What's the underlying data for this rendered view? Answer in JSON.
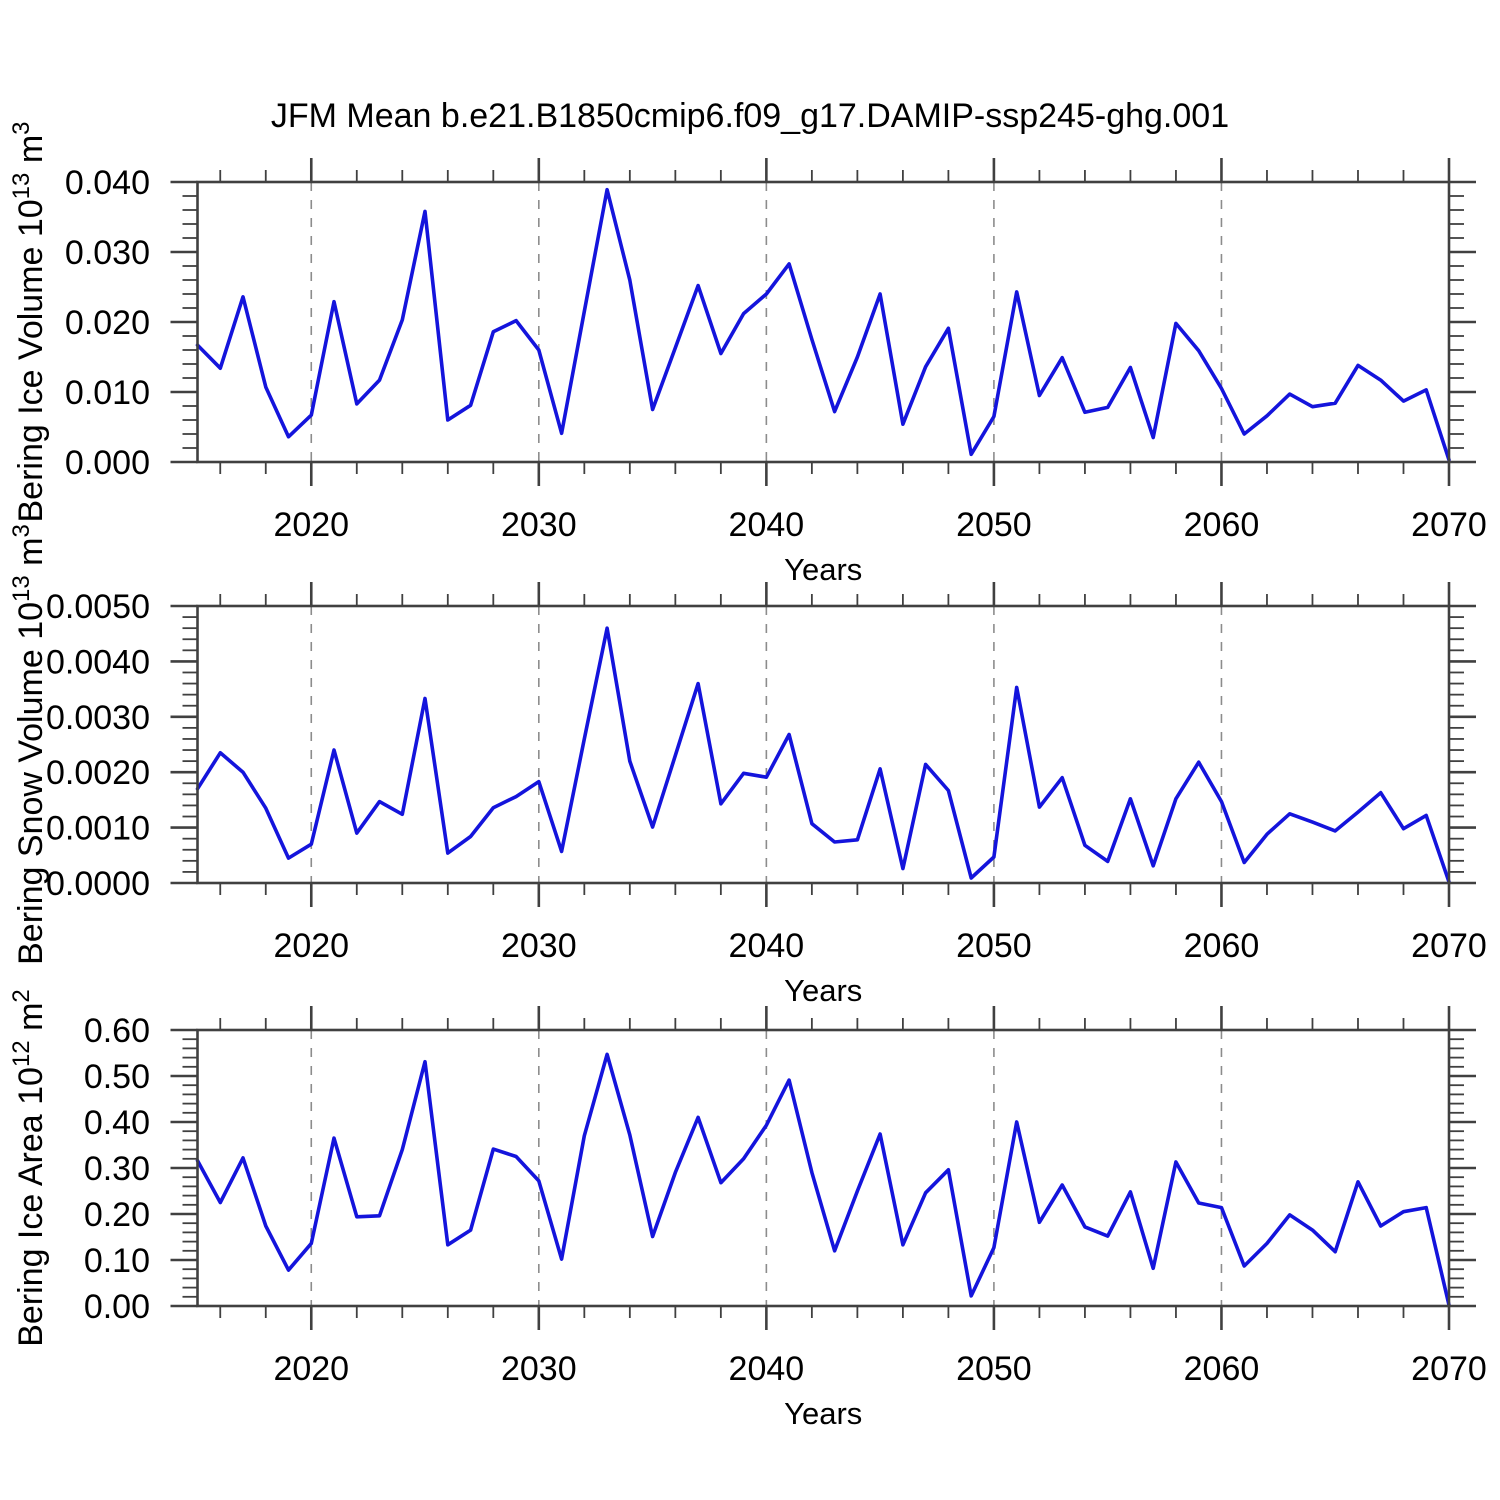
{
  "title": "JFM Mean b.e21.B1850cmip6.f09_g17.DAMIP-ssp245-ghg.001",
  "colors": {
    "line": "#1414dc",
    "axis": "#404040",
    "grid": "#8c8c8c",
    "text": "#000000",
    "background": "#ffffff"
  },
  "chart_data": [
    {
      "type": "line",
      "name": "Bering Ice Volume",
      "slug": "ice-volume",
      "ylabel": "Bering Ice Volume 10¹³ m³",
      "ylabel_parts": {
        "base": "Bering Ice Volume 10",
        "sup1": "13",
        "mid": " m",
        "sup2": "3"
      },
      "xlabel": "Years",
      "ylim": [
        0,
        0.04
      ],
      "yticks": [
        0,
        0.01,
        0.02,
        0.03,
        0.04
      ],
      "ytick_labels": [
        "0.000",
        "0.010",
        "0.020",
        "0.030",
        "0.040"
      ],
      "yminor_step": 0.002,
      "xlim": [
        2015,
        2070
      ],
      "xticks": [
        2020,
        2030,
        2040,
        2050,
        2060,
        2070
      ],
      "xtick_labels": [
        "2020",
        "2030",
        "2040",
        "2050",
        "2060",
        "2070"
      ],
      "xminor_step": 2,
      "grid_years": [
        2020,
        2030,
        2040,
        2050,
        2060
      ],
      "grid_on": true,
      "legend": "none",
      "x": [
        2015,
        2016,
        2017,
        2018,
        2019,
        2020,
        2021,
        2022,
        2023,
        2024,
        2025,
        2026,
        2027,
        2028,
        2029,
        2030,
        2031,
        2032,
        2033,
        2034,
        2035,
        2036,
        2037,
        2038,
        2039,
        2040,
        2041,
        2042,
        2043,
        2044,
        2045,
        2046,
        2047,
        2048,
        2049,
        2050,
        2051,
        2052,
        2053,
        2054,
        2055,
        2056,
        2057,
        2058,
        2059,
        2060,
        2061,
        2062,
        2063,
        2064,
        2065,
        2066,
        2067,
        2068,
        2069,
        2070
      ],
      "values": [
        0.0167,
        0.0134,
        0.0236,
        0.0107,
        0.0036,
        0.0067,
        0.0229,
        0.0083,
        0.0117,
        0.0203,
        0.0358,
        0.006,
        0.0081,
        0.0186,
        0.0202,
        0.016,
        0.0041,
        0.0215,
        0.0389,
        0.026,
        0.0075,
        0.0163,
        0.0252,
        0.0155,
        0.0212,
        0.024,
        0.0283,
        0.0175,
        0.0072,
        0.015,
        0.024,
        0.0054,
        0.0136,
        0.0191,
        0.0011,
        0.0065,
        0.0243,
        0.0095,
        0.0149,
        0.0071,
        0.0078,
        0.0135,
        0.0035,
        0.0198,
        0.0159,
        0.0105,
        0.004,
        0.0066,
        0.0097,
        0.0079,
        0.0084,
        0.0138,
        0.0117,
        0.0087,
        0.0103,
        0.0003
      ]
    },
    {
      "type": "line",
      "name": "Bering Snow Volume",
      "slug": "snow-volume",
      "ylabel": "Bering Snow Volume 10¹³ m³",
      "ylabel_parts": {
        "base": "Bering Snow Volume 10",
        "sup1": "13",
        "mid": " m",
        "sup2": "3"
      },
      "xlabel": "Years",
      "ylim": [
        0,
        0.005
      ],
      "yticks": [
        0,
        0.001,
        0.002,
        0.003,
        0.004,
        0.005
      ],
      "ytick_labels": [
        "0.0000",
        "0.0010",
        "0.0020",
        "0.0030",
        "0.0040",
        "0.0050"
      ],
      "yminor_step": 0.0002,
      "xlim": [
        2015,
        2070
      ],
      "xticks": [
        2020,
        2030,
        2040,
        2050,
        2060,
        2070
      ],
      "xtick_labels": [
        "2020",
        "2030",
        "2040",
        "2050",
        "2060",
        "2070"
      ],
      "xminor_step": 2,
      "grid_years": [
        2020,
        2030,
        2040,
        2050,
        2060
      ],
      "grid_on": true,
      "legend": "none",
      "x": [
        2015,
        2016,
        2017,
        2018,
        2019,
        2020,
        2021,
        2022,
        2023,
        2024,
        2025,
        2026,
        2027,
        2028,
        2029,
        2030,
        2031,
        2032,
        2033,
        2034,
        2035,
        2036,
        2037,
        2038,
        2039,
        2040,
        2041,
        2042,
        2043,
        2044,
        2045,
        2046,
        2047,
        2048,
        2049,
        2050,
        2051,
        2052,
        2053,
        2054,
        2055,
        2056,
        2057,
        2058,
        2059,
        2060,
        2061,
        2062,
        2063,
        2064,
        2065,
        2066,
        2067,
        2068,
        2069,
        2070
      ],
      "values": [
        0.0017,
        0.00235,
        0.002,
        0.00135,
        0.00045,
        0.0007,
        0.0024,
        0.0009,
        0.00147,
        0.00124,
        0.00333,
        0.00054,
        0.00084,
        0.00136,
        0.00156,
        0.00183,
        0.00057,
        0.0026,
        0.0046,
        0.0022,
        0.00101,
        0.0023,
        0.0036,
        0.00143,
        0.00198,
        0.00191,
        0.00268,
        0.00107,
        0.00074,
        0.00078,
        0.00206,
        0.00026,
        0.00214,
        0.00167,
        9e-05,
        0.00047,
        0.00353,
        0.00137,
        0.0019,
        0.00068,
        0.00039,
        0.00152,
        0.00031,
        0.00152,
        0.00218,
        0.00147,
        0.00037,
        0.00088,
        0.00125,
        0.0011,
        0.00094,
        0.00128,
        0.00163,
        0.00098,
        0.00122,
        2e-05
      ]
    },
    {
      "type": "line",
      "name": "Bering Ice Area",
      "slug": "ice-area",
      "ylabel": "Bering Ice Area 10¹² m²",
      "ylabel_parts": {
        "base": "Bering Ice Area 10",
        "sup1": "12",
        "mid": " m",
        "sup2": "2"
      },
      "xlabel": "Years",
      "ylim": [
        0,
        0.6
      ],
      "yticks": [
        0,
        0.1,
        0.2,
        0.3,
        0.4,
        0.5,
        0.6
      ],
      "ytick_labels": [
        "0.00",
        "0.10",
        "0.20",
        "0.30",
        "0.40",
        "0.50",
        "0.60"
      ],
      "yminor_step": 0.02,
      "xlim": [
        2015,
        2070
      ],
      "xticks": [
        2020,
        2030,
        2040,
        2050,
        2060,
        2070
      ],
      "xtick_labels": [
        "2020",
        "2030",
        "2040",
        "2050",
        "2060",
        "2070"
      ],
      "xminor_step": 2,
      "grid_years": [
        2020,
        2030,
        2040,
        2050,
        2060
      ],
      "grid_on": true,
      "legend": "none",
      "x": [
        2015,
        2016,
        2017,
        2018,
        2019,
        2020,
        2021,
        2022,
        2023,
        2024,
        2025,
        2026,
        2027,
        2028,
        2029,
        2030,
        2031,
        2032,
        2033,
        2034,
        2035,
        2036,
        2037,
        2038,
        2039,
        2040,
        2041,
        2042,
        2043,
        2044,
        2045,
        2046,
        2047,
        2048,
        2049,
        2050,
        2051,
        2052,
        2053,
        2054,
        2055,
        2056,
        2057,
        2058,
        2059,
        2060,
        2061,
        2062,
        2063,
        2064,
        2065,
        2066,
        2067,
        2068,
        2069,
        2070
      ],
      "values": [
        0.316,
        0.225,
        0.322,
        0.174,
        0.078,
        0.136,
        0.365,
        0.194,
        0.196,
        0.34,
        0.531,
        0.133,
        0.165,
        0.341,
        0.325,
        0.272,
        0.102,
        0.37,
        0.547,
        0.372,
        0.151,
        0.29,
        0.41,
        0.268,
        0.32,
        0.393,
        0.491,
        0.29,
        0.12,
        0.25,
        0.374,
        0.133,
        0.246,
        0.296,
        0.022,
        0.127,
        0.4,
        0.182,
        0.263,
        0.172,
        0.152,
        0.248,
        0.082,
        0.313,
        0.224,
        0.214,
        0.087,
        0.136,
        0.198,
        0.165,
        0.118,
        0.27,
        0.174,
        0.205,
        0.214,
        0.002
      ]
    }
  ]
}
